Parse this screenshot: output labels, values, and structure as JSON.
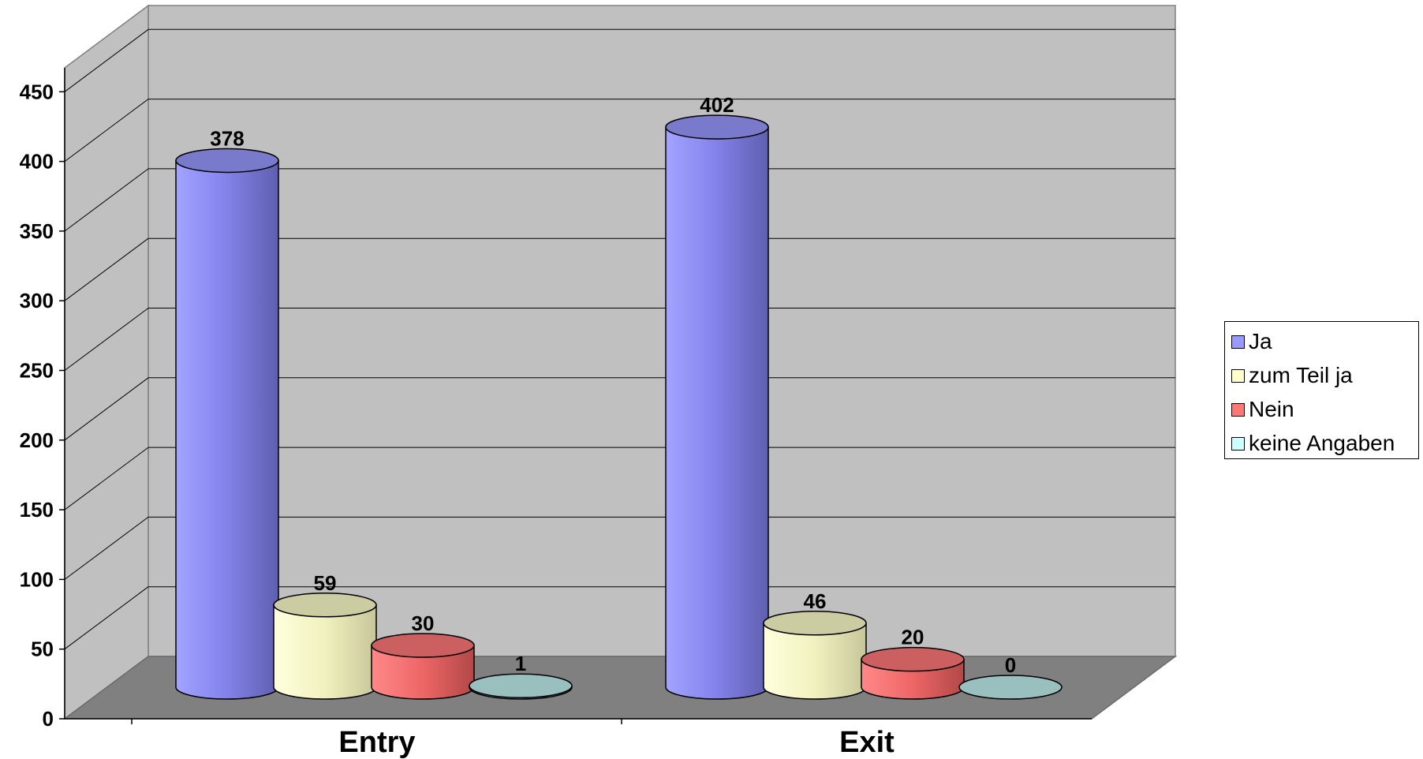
{
  "chart_data": {
    "type": "bar",
    "categories": [
      "Entry",
      "Exit"
    ],
    "series": [
      {
        "name": "Ja",
        "values": [
          378,
          402
        ],
        "color": "#9999ff"
      },
      {
        "name": "zum Teil ja",
        "values": [
          59,
          46
        ],
        "color": "#ffffcc"
      },
      {
        "name": "Nein",
        "values": [
          30,
          20
        ],
        "color": "#ff7777"
      },
      {
        "name": "keine Angaben",
        "values": [
          1,
          0
        ],
        "color": "#ccffff"
      }
    ],
    "data_labels": [
      [
        "378",
        "402"
      ],
      [
        "59",
        "46"
      ],
      [
        "30",
        "20"
      ],
      [
        "1",
        "0"
      ]
    ],
    "yticks": [
      "0",
      "50",
      "100",
      "150",
      "200",
      "250",
      "300",
      "350",
      "400",
      "450"
    ],
    "ylim": [
      0,
      500
    ],
    "grid": true,
    "style": "3d-cylinder",
    "legend_position": "right"
  }
}
